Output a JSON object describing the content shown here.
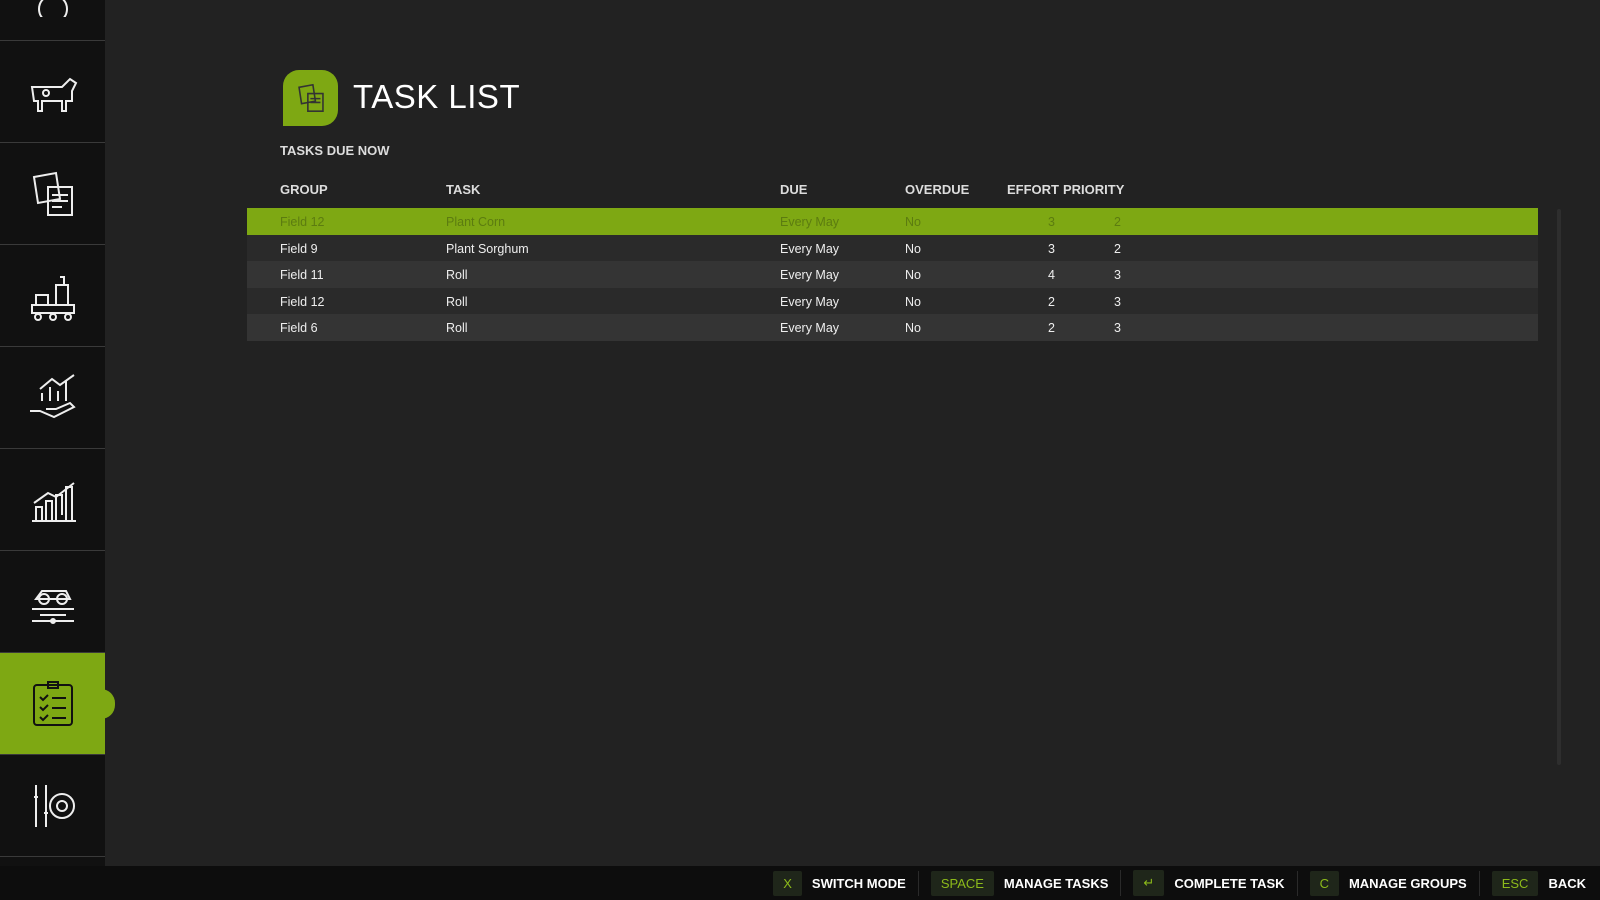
{
  "header": {
    "title": "TASK LIST",
    "subtitle": "TASKS DUE NOW"
  },
  "sidebar": {
    "items": [
      {
        "icon": "circle-icon"
      },
      {
        "icon": "cow-icon"
      },
      {
        "icon": "documents-icon"
      },
      {
        "icon": "production-icon"
      },
      {
        "icon": "hand-growth-icon"
      },
      {
        "icon": "bar-chart-icon"
      },
      {
        "icon": "adjust-spray-levels-icon",
        "logo_text": "ADJUST SPRAY LEVELS"
      },
      {
        "icon": "clipboard-checklist-icon",
        "active": true
      },
      {
        "icon": "settings-sliders-icon"
      }
    ]
  },
  "table": {
    "columns": [
      "GROUP",
      "TASK",
      "DUE",
      "OVERDUE",
      "EFFORT",
      "PRIORITY"
    ],
    "rows": [
      [
        "Field 12",
        "Plant Corn",
        "Every May",
        "No",
        "3",
        "2"
      ],
      [
        "Field 9",
        "Plant Sorghum",
        "Every May",
        "No",
        "3",
        "2"
      ],
      [
        "Field 11",
        "Roll",
        "Every May",
        "No",
        "4",
        "3"
      ],
      [
        "Field 12",
        "Roll",
        "Every May",
        "No",
        "2",
        "3"
      ],
      [
        "Field 6",
        "Roll",
        "Every May",
        "No",
        "2",
        "3"
      ]
    ],
    "selected_row": 0
  },
  "footer": {
    "hints": [
      {
        "key": "X",
        "label": "SWITCH MODE"
      },
      {
        "key": "SPACE",
        "label": "MANAGE TASKS"
      },
      {
        "key": "↵",
        "label": "COMPLETE TASK"
      },
      {
        "key": "C",
        "label": "MANAGE GROUPS"
      },
      {
        "key": "ESC",
        "label": "BACK"
      }
    ]
  },
  "colors": {
    "accent": "#7ea813",
    "background": "#222222",
    "sidebar": "#111111"
  }
}
